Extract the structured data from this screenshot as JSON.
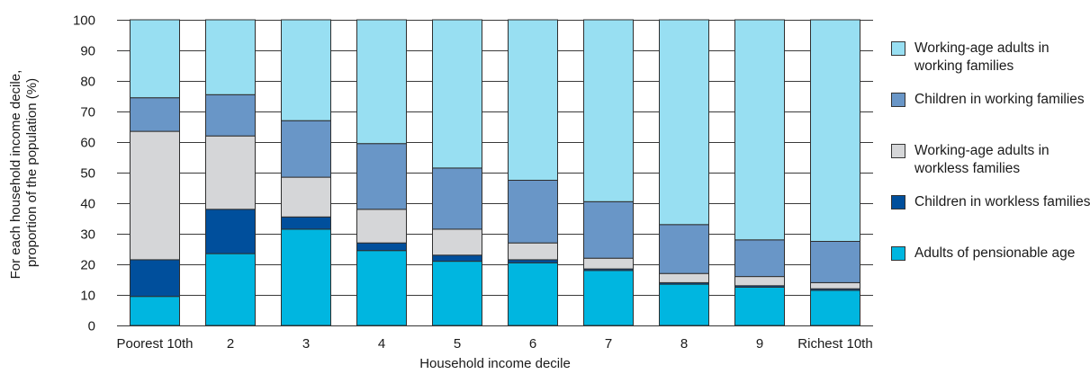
{
  "chart_data": {
    "type": "bar",
    "stacked": true,
    "xlabel": "Household income decile",
    "ylabel": "For each household income decile, proportion of the population (%)",
    "ylim": [
      0,
      100
    ],
    "yticks": [
      0,
      10,
      20,
      30,
      40,
      50,
      60,
      70,
      80,
      90,
      100
    ],
    "grid": true,
    "legend_position": "right",
    "categories": [
      "Poorest 10th",
      "2",
      "3",
      "4",
      "5",
      "6",
      "7",
      "8",
      "9",
      "Richest 10th"
    ],
    "series": [
      {
        "name": "Adults of pensionable age",
        "color": "#00b6e0",
        "values": [
          9.5,
          23.5,
          31.5,
          24.5,
          21.0,
          20.5,
          18.0,
          13.5,
          12.5,
          11.5
        ]
      },
      {
        "name": "Children in workless families",
        "color": "#004f9c",
        "values": [
          12.0,
          14.5,
          4.0,
          2.5,
          2.0,
          1.0,
          0.5,
          0.5,
          0.5,
          0.5
        ]
      },
      {
        "name": "Working-age adults in workless families",
        "color": "#d5d6d8",
        "values": [
          42.0,
          24.0,
          13.0,
          11.0,
          8.5,
          5.5,
          3.5,
          3.0,
          3.0,
          2.0
        ]
      },
      {
        "name": "Children in working families",
        "color": "#6996c7",
        "values": [
          11.0,
          13.5,
          18.5,
          21.5,
          20.0,
          20.5,
          18.5,
          16.0,
          12.0,
          13.5
        ]
      },
      {
        "name": "Working-age adults in working families",
        "color": "#98dff2",
        "values": [
          25.5,
          24.5,
          33.0,
          40.5,
          48.5,
          52.5,
          59.5,
          67.0,
          72.0,
          72.5
        ]
      }
    ],
    "legend_order": [
      "Working-age adults in working families",
      "Children in working families",
      "Working-age adults in workless families",
      "Children in workless families",
      "Adults of pensionable age"
    ]
  }
}
